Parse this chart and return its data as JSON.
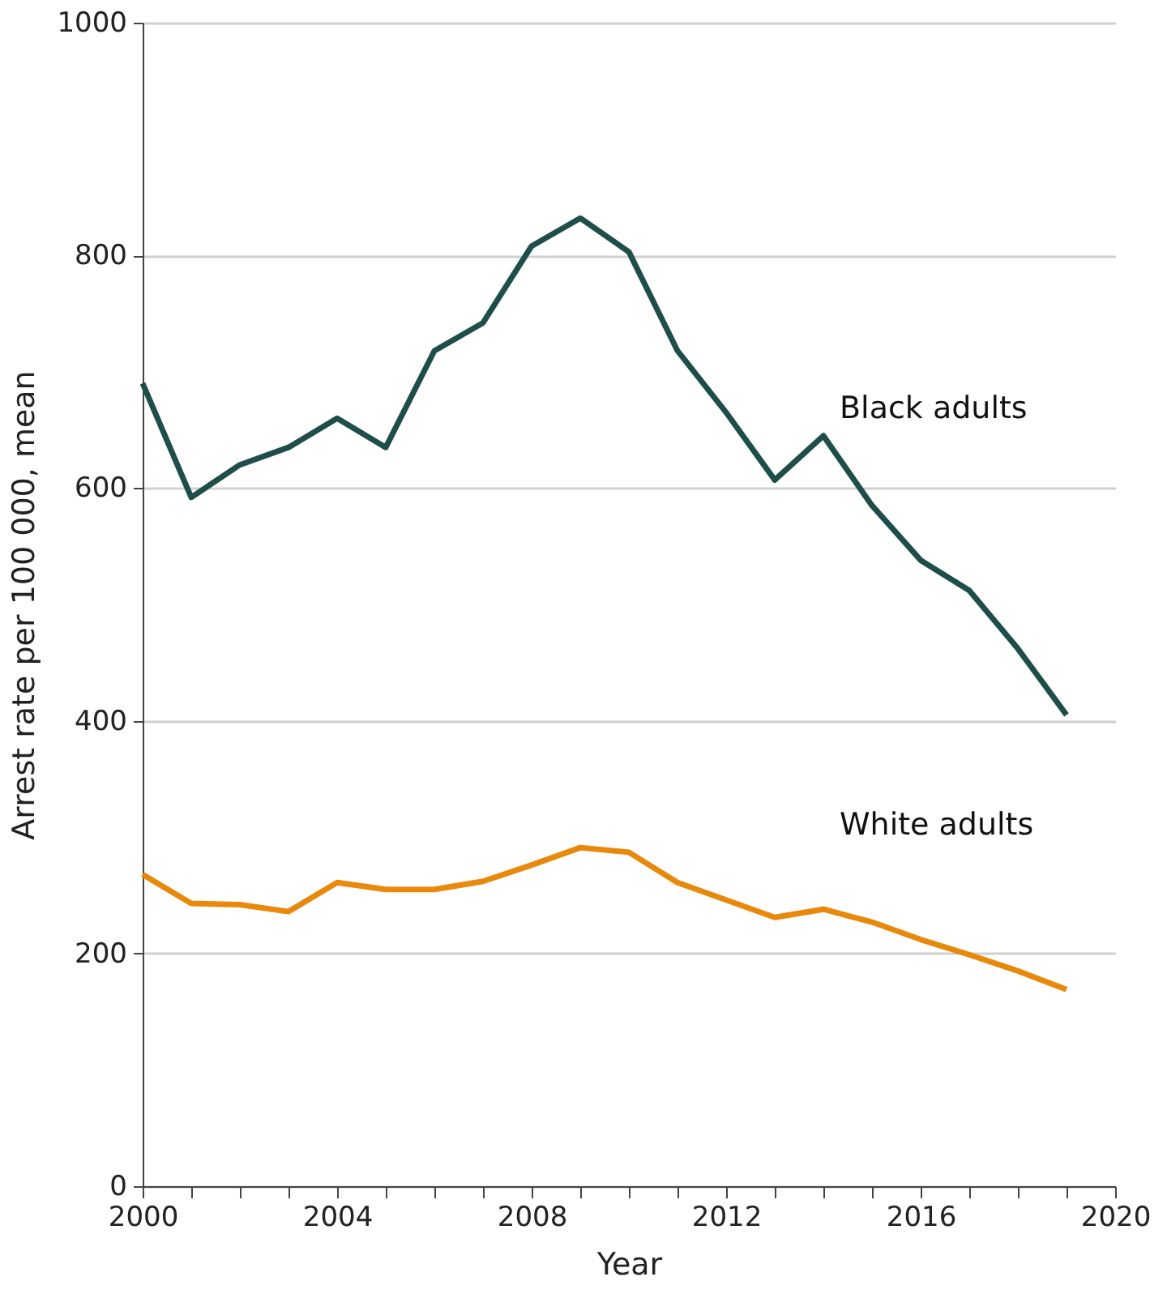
{
  "chart_data": {
    "type": "line",
    "xlabel": "Year",
    "ylabel": "Arrest rate per 100 000, mean",
    "x": [
      2000,
      2001,
      2002,
      2003,
      2004,
      2005,
      2006,
      2007,
      2008,
      2009,
      2010,
      2011,
      2012,
      2013,
      2014,
      2015,
      2016,
      2017,
      2018,
      2019
    ],
    "series": [
      {
        "name": "Black adults",
        "color": "#1f4e4a",
        "values": [
          690,
          592,
          620,
          635,
          660,
          635,
          718,
          742,
          808,
          832,
          803,
          718,
          665,
          607,
          645,
          585,
          538,
          512,
          462,
          405
        ]
      },
      {
        "name": "White adults",
        "color": "#e8890c",
        "values": [
          268,
          243,
          242,
          236,
          261,
          255,
          255,
          262,
          276,
          291,
          287,
          261,
          246,
          231,
          238,
          227,
          212,
          199,
          185,
          169
        ]
      }
    ],
    "xlim": [
      2000,
      2020
    ],
    "xticks": [
      2000,
      {
        "value": 2001,
        "label": null
      },
      {
        "value": 2002,
        "label": null
      },
      {
        "value": 2003,
        "label": null
      },
      2004,
      {
        "value": 2005,
        "label": null
      },
      {
        "value": 2006,
        "label": null
      },
      {
        "value": 2007,
        "label": null
      },
      2008,
      {
        "value": 2009,
        "label": null
      },
      {
        "value": 2010,
        "label": null
      },
      {
        "value": 2011,
        "label": null
      },
      2012,
      {
        "value": 2013,
        "label": null
      },
      {
        "value": 2014,
        "label": null
      },
      {
        "value": 2015,
        "label": null
      },
      2016,
      {
        "value": 2017,
        "label": null
      },
      {
        "value": 2018,
        "label": null
      },
      {
        "value": 2019,
        "label": null
      },
      2020
    ],
    "ylim": [
      0,
      1000
    ],
    "yticks": [
      0,
      200,
      400,
      600,
      800,
      1000
    ],
    "grid": "y",
    "legend": false,
    "marker": "none",
    "line_style": "solid"
  }
}
